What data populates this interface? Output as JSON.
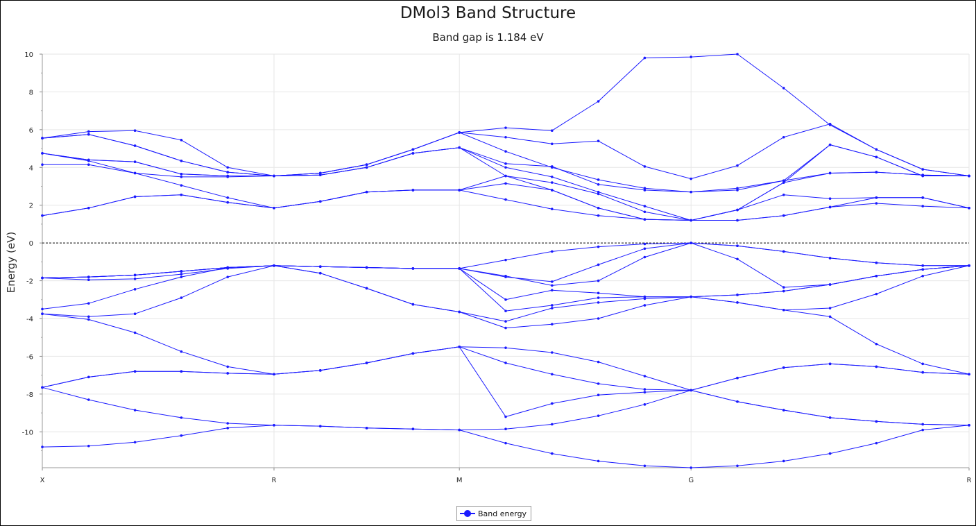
{
  "chart_data": {
    "type": "line",
    "title": "DMol3 Band Structure",
    "subtitle": "Band gap is 1.184 eV",
    "xlabel": "",
    "ylabel": "Energy (eV)",
    "ylim": [
      -11.9,
      10
    ],
    "yticks": [
      10,
      8,
      6,
      4,
      2,
      0,
      -2,
      -4,
      -6,
      -8,
      -10
    ],
    "kpoint_labels": [
      "X",
      "R",
      "M",
      "G",
      "R"
    ],
    "kpoint_index": [
      0,
      5,
      9,
      14,
      20
    ],
    "n_kpoints": 21,
    "fermi_level": 0,
    "grid": true,
    "legend": "bottom-center",
    "series_color": "#1a1aff",
    "series": [
      {
        "name": "Band energy",
        "values": [
          -10.8,
          -10.75,
          -10.55,
          -10.2,
          -9.8,
          -9.65,
          -9.7,
          -9.8,
          -9.85,
          -9.9,
          -10.6,
          -11.15,
          -11.55,
          -11.8,
          -11.9,
          -11.8,
          -11.55,
          -11.15,
          -10.6,
          -9.9,
          -9.65
        ]
      },
      {
        "name": "Band energy",
        "values": [
          -7.65,
          -8.3,
          -8.85,
          -9.25,
          -9.55,
          -9.65,
          -9.7,
          -9.8,
          -9.85,
          -9.9,
          -9.85,
          -9.6,
          -9.15,
          -8.55,
          -7.8,
          -8.4,
          -8.85,
          -9.25,
          -9.45,
          -9.6,
          -9.65
        ]
      },
      {
        "name": "Band energy",
        "values": [
          -7.65,
          -7.1,
          -6.8,
          -6.8,
          -6.9,
          -6.95,
          -6.75,
          -6.35,
          -5.85,
          -5.5,
          -9.2,
          -8.5,
          -8.05,
          -7.9,
          -7.8,
          -7.15,
          -6.6,
          -6.4,
          -6.55,
          -6.85,
          -6.95
        ]
      },
      {
        "name": "Band energy",
        "values": [
          -7.65,
          -7.1,
          -6.8,
          -6.8,
          -6.9,
          -6.95,
          -6.75,
          -6.35,
          -5.85,
          -5.5,
          -5.55,
          -5.8,
          -6.3,
          -7.05,
          -7.8,
          -7.15,
          -6.6,
          -6.4,
          -6.55,
          -6.85,
          -6.95
        ]
      },
      {
        "name": "Band energy",
        "values": [
          -3.75,
          -4.05,
          -4.75,
          -5.75,
          -6.55,
          -6.95,
          -6.75,
          -6.35,
          -5.85,
          -5.5,
          -6.35,
          -6.95,
          -7.45,
          -7.75,
          -7.8,
          -8.4,
          -8.85,
          -9.25,
          -9.45,
          -9.6,
          -9.65
        ]
      },
      {
        "name": "Band energy",
        "values": [
          -3.75,
          -3.9,
          -3.75,
          -2.9,
          -1.8,
          -1.2,
          -1.6,
          -2.4,
          -3.25,
          -3.65,
          -4.5,
          -4.3,
          -4.0,
          -3.3,
          -2.85,
          -2.75,
          -2.55,
          -2.2,
          -1.75,
          -1.4,
          -1.2
        ]
      },
      {
        "name": "Band energy",
        "values": [
          -3.5,
          -3.2,
          -2.45,
          -1.8,
          -1.3,
          -1.2,
          -1.6,
          -2.4,
          -3.25,
          -3.65,
          -4.15,
          -3.45,
          -3.15,
          -2.95,
          -2.85,
          -3.15,
          -3.55,
          -3.45,
          -2.7,
          -1.75,
          -1.2
        ]
      },
      {
        "name": "Band energy",
        "values": [
          -1.85,
          -1.95,
          -1.9,
          -1.65,
          -1.35,
          -1.2,
          -1.25,
          -1.3,
          -1.35,
          -1.35,
          -3.0,
          -2.5,
          -2.65,
          -2.85,
          -2.85,
          -3.15,
          -3.55,
          -3.9,
          -5.35,
          -6.4,
          -6.95
        ]
      },
      {
        "name": "Band energy",
        "values": [
          -1.85,
          -1.8,
          -1.7,
          -1.5,
          -1.3,
          -1.2,
          -1.25,
          -1.3,
          -1.35,
          -1.35,
          -3.6,
          -3.3,
          -2.9,
          -2.85,
          -2.85,
          -2.75,
          -2.55,
          -2.2,
          -1.75,
          -1.4,
          -1.2
        ]
      },
      {
        "name": "Band energy",
        "values": [
          -1.85,
          -1.8,
          -1.7,
          -1.5,
          -1.3,
          -1.2,
          -1.25,
          -1.3,
          -1.35,
          -1.35,
          -1.8,
          -2.05,
          -1.15,
          -0.3,
          0.0,
          -0.85,
          -2.35,
          -2.2,
          -1.75,
          -1.4,
          -1.2
        ]
      },
      {
        "name": "Band energy",
        "values": [
          -1.85,
          -1.8,
          -1.7,
          -1.5,
          -1.3,
          -1.2,
          -1.25,
          -1.3,
          -1.35,
          -1.35,
          -1.75,
          -2.25,
          -2.0,
          -0.75,
          0.0,
          -0.15,
          -0.45,
          -0.8,
          -1.05,
          -1.2,
          -1.2
        ]
      },
      {
        "name": "Band energy",
        "values": [
          -1.85,
          -1.8,
          -1.7,
          -1.5,
          -1.3,
          -1.2,
          -1.25,
          -1.3,
          -1.35,
          -1.35,
          -0.9,
          -0.45,
          -0.2,
          -0.05,
          0.0,
          -0.15,
          -0.45,
          -0.8,
          -1.05,
          -1.2,
          -1.2
        ]
      },
      {
        "name": "Band energy",
        "values": [
          1.45,
          1.85,
          2.45,
          2.55,
          2.15,
          1.85,
          2.2,
          2.7,
          2.8,
          2.8,
          2.3,
          1.8,
          1.45,
          1.25,
          1.2,
          1.2,
          1.45,
          1.9,
          2.1,
          1.95,
          1.85
        ]
      },
      {
        "name": "Band energy",
        "values": [
          1.45,
          1.85,
          2.45,
          2.55,
          2.15,
          1.85,
          2.2,
          2.7,
          2.8,
          2.8,
          3.15,
          2.8,
          1.85,
          1.25,
          1.2,
          1.2,
          1.45,
          1.9,
          2.4,
          2.4,
          1.85
        ]
      },
      {
        "name": "Band energy",
        "values": [
          4.75,
          4.35,
          3.7,
          3.05,
          2.4,
          1.85,
          2.2,
          2.7,
          2.8,
          2.8,
          3.55,
          2.8,
          1.85,
          1.25,
          1.2,
          1.75,
          2.55,
          2.35,
          2.4,
          2.4,
          1.85
        ]
      },
      {
        "name": "Band energy",
        "values": [
          4.15,
          4.15,
          3.7,
          3.5,
          3.5,
          3.55,
          3.6,
          4.0,
          4.75,
          5.05,
          3.55,
          3.2,
          2.6,
          1.65,
          1.2,
          1.75,
          3.2,
          5.2,
          4.55,
          3.55,
          3.55
        ]
      },
      {
        "name": "Band energy",
        "values": [
          4.75,
          4.4,
          4.3,
          3.65,
          3.55,
          3.55,
          3.6,
          4.0,
          4.75,
          5.05,
          4.0,
          3.5,
          2.7,
          1.95,
          1.2,
          1.75,
          3.2,
          3.7,
          3.75,
          3.6,
          3.55
        ]
      },
      {
        "name": "Band energy",
        "values": [
          4.75,
          4.4,
          4.3,
          3.65,
          3.55,
          3.55,
          3.6,
          4.0,
          4.75,
          5.05,
          4.2,
          4.05,
          3.1,
          2.8,
          2.7,
          2.8,
          3.3,
          5.2,
          4.55,
          3.55,
          3.55
        ]
      },
      {
        "name": "Band energy",
        "values": [
          5.55,
          5.75,
          5.15,
          4.35,
          3.75,
          3.55,
          3.7,
          4.15,
          4.95,
          5.85,
          4.85,
          4.0,
          3.35,
          2.9,
          2.7,
          2.9,
          3.3,
          3.7,
          3.75,
          3.6,
          3.55
        ]
      },
      {
        "name": "Band energy",
        "values": [
          5.55,
          5.75,
          5.15,
          4.35,
          3.75,
          3.55,
          3.7,
          4.15,
          4.95,
          5.85,
          5.6,
          5.25,
          5.4,
          4.05,
          3.4,
          4.1,
          5.6,
          6.3,
          4.95,
          3.9,
          3.55
        ]
      },
      {
        "name": "Band energy",
        "values": [
          5.55,
          5.9,
          5.95,
          5.45,
          4.0,
          3.55,
          3.7,
          4.15,
          4.95,
          5.85,
          6.1,
          5.95,
          7.5,
          9.8,
          9.85,
          10.0,
          8.2,
          6.25,
          4.95,
          3.9,
          3.55
        ]
      }
    ]
  }
}
